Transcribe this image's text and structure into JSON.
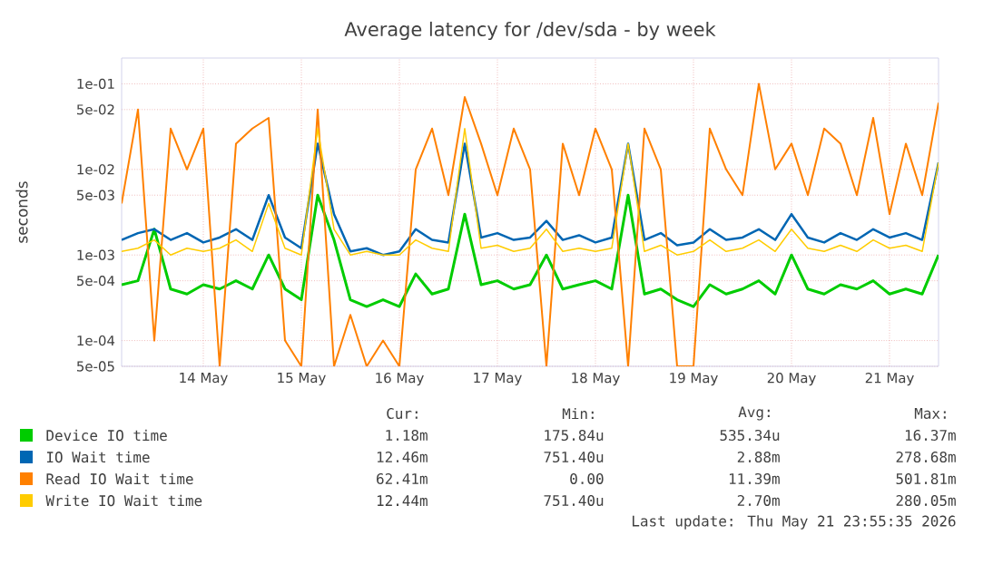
{
  "chart_data": {
    "type": "line",
    "title": "Average latency for /dev/sda - by week",
    "ylabel": "seconds",
    "log": "y",
    "grid": true,
    "legend": "bottom",
    "xlim": [
      "2026-05-13T16:00",
      "2026-05-22T00:00"
    ],
    "xticks": [
      {
        "value": "2026-05-14T12:00",
        "label": "14 May"
      },
      {
        "value": "2026-05-15T12:00",
        "label": "15 May"
      },
      {
        "value": "2026-05-16T12:00",
        "label": "16 May"
      },
      {
        "value": "2026-05-17T12:00",
        "label": "17 May"
      },
      {
        "value": "2026-05-18T12:00",
        "label": "18 May"
      },
      {
        "value": "2026-05-19T12:00",
        "label": "19 May"
      },
      {
        "value": "2026-05-20T12:00",
        "label": "20 May"
      },
      {
        "value": "2026-05-21T12:00",
        "label": "21 May"
      }
    ],
    "ylim": [
      5e-05,
      0.2
    ],
    "yticks": [
      {
        "value": 5e-05,
        "label": "5e-05"
      },
      {
        "value": 0.0001,
        "label": "1e-04"
      },
      {
        "value": 0.0005,
        "label": "5e-04"
      },
      {
        "value": 0.001,
        "label": "1e-03"
      },
      {
        "value": 0.005,
        "label": "5e-03"
      },
      {
        "value": 0.01,
        "label": "1e-02"
      },
      {
        "value": 0.05,
        "label": "5e-02"
      },
      {
        "value": 0.1,
        "label": "1e-01"
      }
    ],
    "x": [
      "2026-05-13T16:00",
      "2026-05-13T20:00",
      "2026-05-14T00:00",
      "2026-05-14T04:00",
      "2026-05-14T08:00",
      "2026-05-14T12:00",
      "2026-05-14T16:00",
      "2026-05-14T20:00",
      "2026-05-15T00:00",
      "2026-05-15T04:00",
      "2026-05-15T08:00",
      "2026-05-15T12:00",
      "2026-05-15T16:00",
      "2026-05-15T20:00",
      "2026-05-16T00:00",
      "2026-05-16T04:00",
      "2026-05-16T08:00",
      "2026-05-16T12:00",
      "2026-05-16T16:00",
      "2026-05-16T20:00",
      "2026-05-17T00:00",
      "2026-05-17T04:00",
      "2026-05-17T08:00",
      "2026-05-17T12:00",
      "2026-05-17T16:00",
      "2026-05-17T20:00",
      "2026-05-18T00:00",
      "2026-05-18T04:00",
      "2026-05-18T08:00",
      "2026-05-18T12:00",
      "2026-05-18T16:00",
      "2026-05-18T20:00",
      "2026-05-19T00:00",
      "2026-05-19T04:00",
      "2026-05-19T08:00",
      "2026-05-19T12:00",
      "2026-05-19T16:00",
      "2026-05-19T20:00",
      "2026-05-20T00:00",
      "2026-05-20T04:00",
      "2026-05-20T08:00",
      "2026-05-20T12:00",
      "2026-05-20T16:00",
      "2026-05-20T20:00",
      "2026-05-21T00:00",
      "2026-05-21T04:00",
      "2026-05-21T08:00",
      "2026-05-21T12:00",
      "2026-05-21T16:00",
      "2026-05-21T20:00",
      "2026-05-22T00:00"
    ],
    "series": [
      {
        "name": "Device IO time",
        "color": "#00cc00",
        "values": [
          0.00045,
          0.0005,
          0.002,
          0.0004,
          0.00035,
          0.00045,
          0.0004,
          0.0005,
          0.0004,
          0.001,
          0.0004,
          0.0003,
          0.005,
          0.0015,
          0.0003,
          0.00025,
          0.0003,
          0.00025,
          0.0006,
          0.00035,
          0.0004,
          0.003,
          0.00045,
          0.0005,
          0.0004,
          0.00045,
          0.001,
          0.0004,
          0.00045,
          0.0005,
          0.0004,
          0.005,
          0.00035,
          0.0004,
          0.0003,
          0.00025,
          0.00045,
          0.00035,
          0.0004,
          0.0005,
          0.00035,
          0.001,
          0.0004,
          0.00035,
          0.00045,
          0.0004,
          0.0005,
          0.00035,
          0.0004,
          0.00035,
          0.001
        ]
      },
      {
        "name": "IO Wait time",
        "color": "#0066b3",
        "values": [
          0.0015,
          0.0018,
          0.002,
          0.0015,
          0.0018,
          0.0014,
          0.0016,
          0.002,
          0.0015,
          0.005,
          0.0016,
          0.0012,
          0.02,
          0.003,
          0.0011,
          0.0012,
          0.001,
          0.0011,
          0.002,
          0.0015,
          0.0014,
          0.02,
          0.0016,
          0.0018,
          0.0015,
          0.0016,
          0.0025,
          0.0015,
          0.0017,
          0.0014,
          0.0016,
          0.02,
          0.0015,
          0.0018,
          0.0013,
          0.0014,
          0.002,
          0.0015,
          0.0016,
          0.002,
          0.0015,
          0.003,
          0.0016,
          0.0014,
          0.0018,
          0.0015,
          0.002,
          0.0016,
          0.0018,
          0.0015,
          0.012
        ]
      },
      {
        "name": "Read IO Wait time",
        "color": "#ff8000",
        "values": [
          0.004,
          0.05,
          0.0001,
          0.03,
          0.01,
          0.03,
          5e-05,
          0.02,
          0.03,
          0.04,
          0.0001,
          5e-05,
          0.05,
          5e-05,
          0.0002,
          5e-05,
          0.0001,
          5e-05,
          0.01,
          0.03,
          0.005,
          0.07,
          0.02,
          0.005,
          0.03,
          0.01,
          5e-05,
          0.02,
          0.005,
          0.03,
          0.01,
          5e-05,
          0.03,
          0.01,
          5e-05,
          5e-05,
          0.03,
          0.01,
          0.005,
          0.1,
          0.01,
          0.02,
          0.005,
          0.03,
          0.02,
          0.005,
          0.04,
          0.003,
          0.02,
          0.005,
          0.06
        ]
      },
      {
        "name": "Write IO Wait time",
        "color": "#ffcc00",
        "values": [
          0.0011,
          0.0012,
          0.0015,
          0.001,
          0.0012,
          0.0011,
          0.0012,
          0.0015,
          0.0011,
          0.004,
          0.0012,
          0.001,
          0.03,
          0.002,
          0.001,
          0.0011,
          0.001,
          0.001,
          0.0015,
          0.0012,
          0.0011,
          0.03,
          0.0012,
          0.0013,
          0.0011,
          0.0012,
          0.002,
          0.0011,
          0.0012,
          0.0011,
          0.0012,
          0.02,
          0.0011,
          0.0013,
          0.001,
          0.0011,
          0.0015,
          0.0011,
          0.0012,
          0.0015,
          0.0011,
          0.002,
          0.0012,
          0.0011,
          0.0013,
          0.0011,
          0.0015,
          0.0012,
          0.0013,
          0.0011,
          0.012
        ]
      }
    ],
    "annotations": [
      "Cur:",
      "Min:",
      "Avg:",
      "Max:",
      "1.18m",
      "175.84u",
      "535.34u",
      "16.37m",
      "12.46m",
      "751.40u",
      "2.88m",
      "278.68m",
      "62.41m",
      "0.00",
      "11.39m",
      "501.81m",
      "12.44m",
      "751.40u",
      "2.70m",
      "280.05m",
      "Last update: Thu May 21 23:55:35 2026"
    ]
  }
}
